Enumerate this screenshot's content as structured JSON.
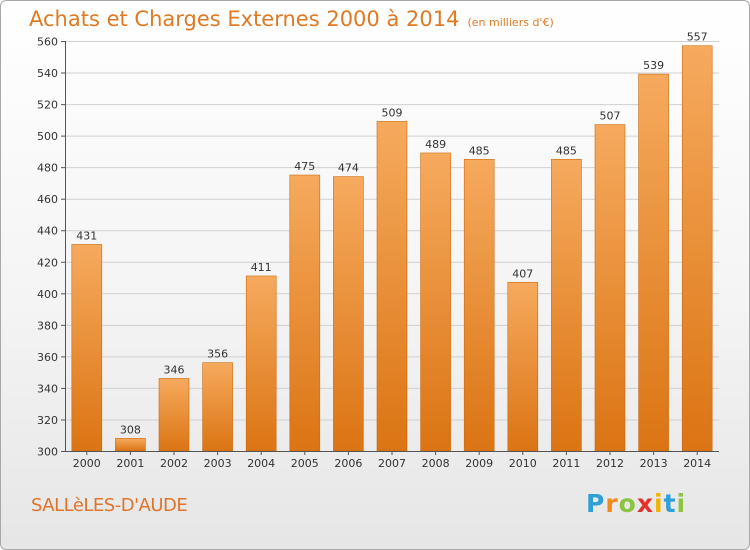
{
  "header": {
    "title": "Achats et Charges Externes 2000 à 2014",
    "subtitle": "(en milliers d'€)"
  },
  "footer": {
    "commune": "SALLèLES-D'AUDE",
    "logo": {
      "letters": [
        "P",
        "r",
        "o",
        "x",
        "i",
        "t",
        "i"
      ],
      "colors": [
        "#2f9fd8",
        "#f08a1c",
        "#8bc53f",
        "#e4312b",
        "#f0b400",
        "#2f9fd8",
        "#8bc53f"
      ]
    }
  },
  "colors": {
    "bar_top": "#f6aa5e",
    "bar_bottom": "#db7413",
    "bar_edge": "#cc6a10",
    "grid": "#d0d0d0",
    "axis": "#555555",
    "title": "#e07a22"
  },
  "chart_data": {
    "type": "bar",
    "title": "Achats et Charges Externes 2000 à 2014",
    "subtitle": "(en milliers d'€)",
    "categories": [
      "2000",
      "2001",
      "2002",
      "2003",
      "2004",
      "2005",
      "2006",
      "2007",
      "2008",
      "2009",
      "2010",
      "2011",
      "2012",
      "2013",
      "2014"
    ],
    "values": [
      431,
      308,
      346,
      356,
      411,
      475,
      474,
      509,
      489,
      485,
      407,
      485,
      507,
      539,
      557
    ],
    "ylim": [
      300,
      560
    ],
    "yticks": [
      300,
      320,
      340,
      360,
      380,
      400,
      420,
      440,
      460,
      480,
      500,
      520,
      540,
      560
    ],
    "grid": true,
    "legend": "none",
    "xlabel": "",
    "ylabel": ""
  }
}
